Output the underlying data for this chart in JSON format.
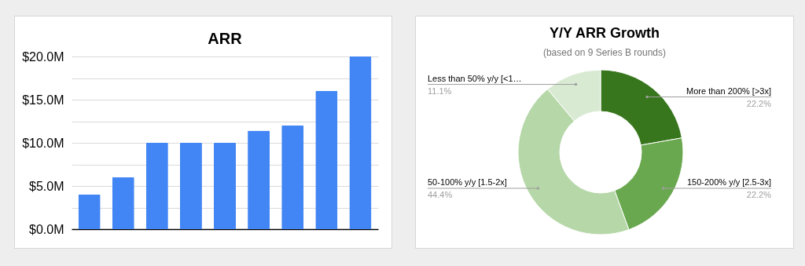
{
  "chart_data": [
    {
      "type": "bar",
      "title": "ARR",
      "categories": [
        null,
        null,
        null,
        null,
        null,
        null,
        null,
        null,
        null
      ],
      "values": [
        4,
        6,
        10,
        10,
        10,
        11.4,
        12,
        16,
        20
      ],
      "color": "#4285f4",
      "ylim": [
        0,
        20
      ],
      "yticks": [
        {
          "value": 0,
          "label": "$0.0M"
        },
        {
          "value": 2.5,
          "label": null
        },
        {
          "value": 5,
          "label": "$5.0M"
        },
        {
          "value": 7.5,
          "label": null
        },
        {
          "value": 10,
          "label": "$10.0M"
        },
        {
          "value": 12.5,
          "label": null
        },
        {
          "value": 15,
          "label": "$15.0M"
        },
        {
          "value": 17.5,
          "label": null
        },
        {
          "value": 20,
          "label": "$20.0M"
        }
      ],
      "grid": "y"
    },
    {
      "type": "donut",
      "title": "Y/Y ARR Growth",
      "subtitle": "(based on 9 Series B rounds)",
      "categories": [
        "More than 200% [>3x]",
        "150-200% y/y [2.5-3x]",
        "50-100% y/y [1.5-2x]",
        "Less than 50% y/y [<1…"
      ],
      "values": [
        22.2,
        22.2,
        44.4,
        11.1
      ],
      "colors": [
        "#38761d",
        "#6aa84f",
        "#b6d7a8",
        "#d9ead3"
      ],
      "value_labels": [
        "22.2%",
        "22.2%",
        "44.4%",
        "11.1%"
      ]
    }
  ]
}
